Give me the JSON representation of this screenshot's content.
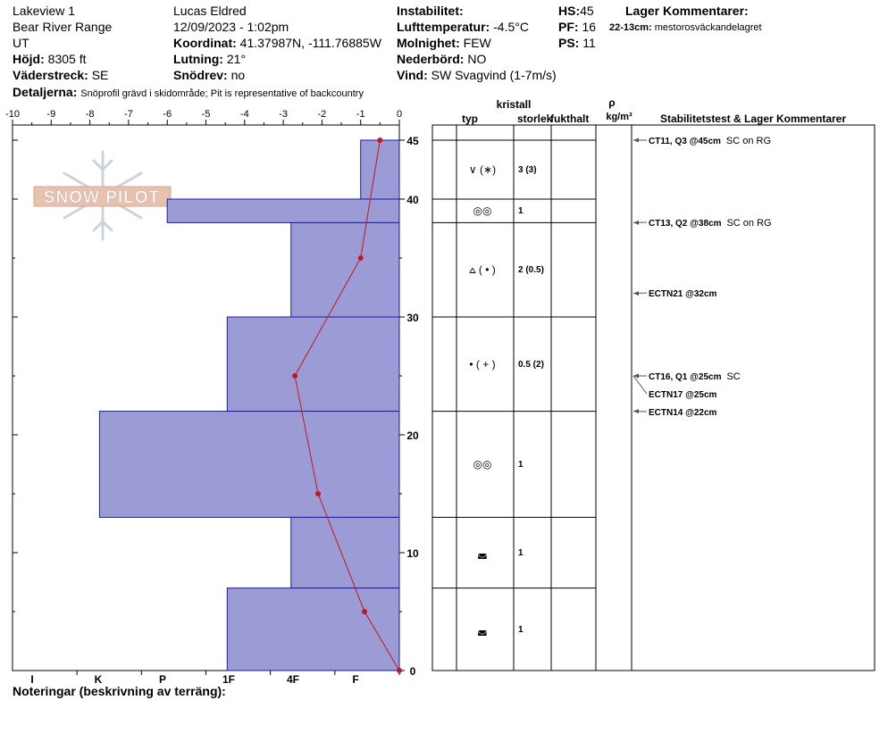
{
  "header": {
    "location": "Lakeview 1",
    "range": "Bear River Range",
    "state": "UT",
    "elevation_label": "Höjd:",
    "elevation": "8305 ft",
    "aspect_label": "Väderstreck:",
    "aspect": "SE",
    "details_label": "Detaljerna:",
    "details": "Snöprofil grävd i skidområde;  Pit is representative of backcountry",
    "observer": "Lucas Eldred",
    "datetime": "12/09/2023 - 1:02pm",
    "coord_label": "Koordinat:",
    "coord": "41.37987N, -111.76885W",
    "slope_label": "Lutning:",
    "slope": "21°",
    "wind_loading_label": "Snödrev:",
    "wind_loading": "no",
    "instability_label": "Instabilitet:",
    "air_temp_label": "Lufttemperatur:",
    "air_temp": "-4.5°C",
    "sky_label": "Molnighet:",
    "sky": "FEW",
    "precip_label": "Nederbörd:",
    "precip": "NO",
    "wind_label": "Vind:",
    "wind": "SW  Svagvind (1-7m/s)",
    "hs_label": "HS:",
    "hs": "45",
    "pf_label": "PF:",
    "pf": "16",
    "ps_label": "PS:",
    "ps": "11",
    "layer_comments_label": "Lager Kommentarer:",
    "layer_comment_depth": "22-13cm:",
    "layer_comment_text": "mestorosväckandelagret"
  },
  "logo_text": "SNOW PILOT",
  "notes_label": "Noteringar (beskrivning av terräng):",
  "columns": {
    "crystal": "kristall",
    "type": "typ",
    "size": "storlek",
    "moisture": "fukthalt",
    "rho": "ρ",
    "density_unit": "kg/m³",
    "stability": "Stabilitetstest & Lager Kommentarer"
  },
  "colors": {
    "bar_fill": "#9b9bd6",
    "bar_stroke": "#1a1aa8",
    "temp_line": "#c41818"
  },
  "chart_data": {
    "type": "bar",
    "title": "",
    "xlabel": "",
    "ylabel": "",
    "orientation": "horizontal",
    "ylim": [
      0,
      45
    ],
    "height_ticks": [
      0,
      10,
      20,
      30,
      40,
      45
    ],
    "temp_axis": {
      "range": [
        -10,
        0
      ],
      "ticks": [
        -10,
        -9,
        -8,
        -7,
        -6,
        -5,
        -4,
        -3,
        -2,
        -1,
        0
      ]
    },
    "hardness_labels": [
      "I",
      "K",
      "P",
      "1F",
      "4F",
      "F"
    ],
    "hardness_scale": [
      {
        "label": "I",
        "value": 5
      },
      {
        "label": "K",
        "value": 4
      },
      {
        "label": "P",
        "value": 3
      },
      {
        "label": "1F",
        "value": 2
      },
      {
        "label": "4F",
        "value": 1
      },
      {
        "label": "F",
        "value": 0
      }
    ],
    "layers": [
      {
        "top": 45,
        "bottom": 40,
        "hardness": -1,
        "type": "∨ (∗)",
        "size": "3 (3)"
      },
      {
        "top": 40,
        "bottom": 38,
        "hardness": -6,
        "type": "◎◎",
        "size": "1"
      },
      {
        "top": 38,
        "bottom": 30,
        "hardness": -2.8,
        "type": "⩟ ( • )",
        "size": "2 (0.5)"
      },
      {
        "top": 30,
        "bottom": 22,
        "hardness": -4.45,
        "type": "• ( + )",
        "size": "0.5 (2)"
      },
      {
        "top": 22,
        "bottom": 13,
        "hardness": -7.75,
        "type": "◎◎",
        "size": "1"
      },
      {
        "top": 13,
        "bottom": 7,
        "hardness": -2.8,
        "type": "◛",
        "size": "1"
      },
      {
        "top": 7,
        "bottom": 0,
        "hardness": -4.45,
        "type": "◛",
        "size": "1"
      }
    ],
    "temperature": [
      {
        "depth": 45,
        "temp": -0.5
      },
      {
        "depth": 35,
        "temp": -1.0
      },
      {
        "depth": 25,
        "temp": -2.7
      },
      {
        "depth": 15,
        "temp": -2.1
      },
      {
        "depth": 5,
        "temp": -0.9
      },
      {
        "depth": 0,
        "temp": 0.0
      }
    ],
    "stability_tests": [
      {
        "depth": 45,
        "label": "CT11, Q3 @45cm",
        "comment": "SC on RG"
      },
      {
        "depth": 38,
        "label": "CT13, Q2 @38cm",
        "comment": "SC on RG"
      },
      {
        "depth": 32,
        "label": "ECTN21 @32cm",
        "comment": ""
      },
      {
        "depth": 25,
        "label": "CT16, Q1 @25cm",
        "comment": "SC"
      },
      {
        "depth": 25,
        "label": "ECTN17 @25cm",
        "comment": ""
      },
      {
        "depth": 22,
        "label": "ECTN14 @22cm",
        "comment": ""
      }
    ]
  }
}
